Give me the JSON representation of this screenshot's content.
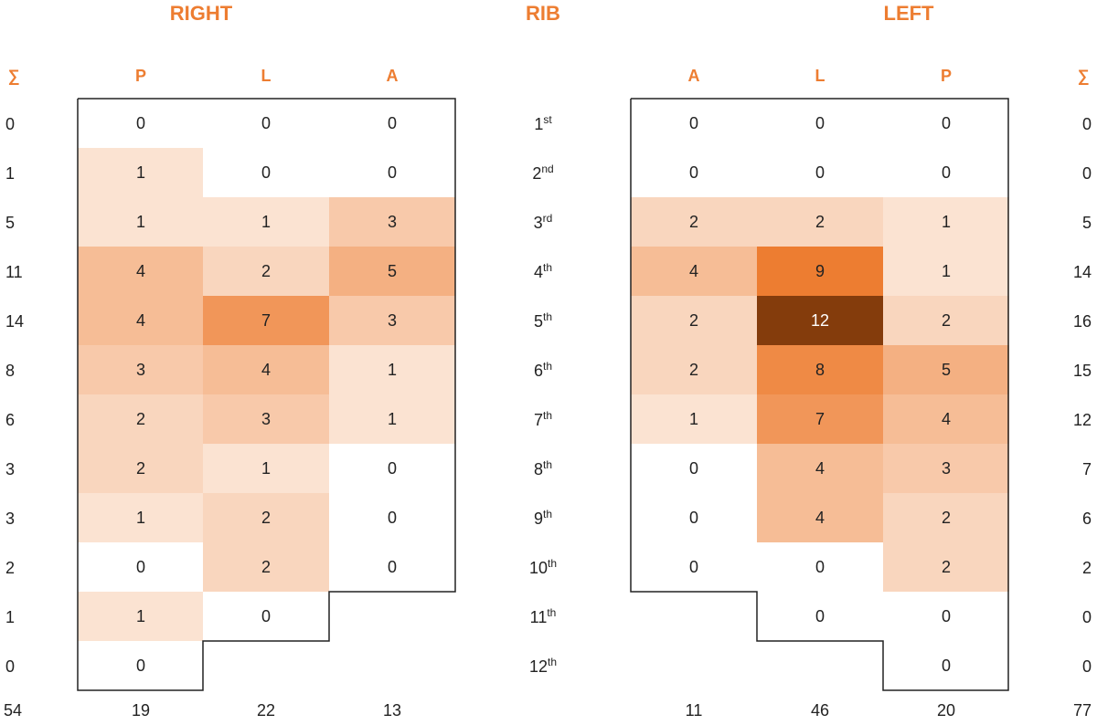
{
  "chart_data": {
    "type": "heatmap",
    "headers": {
      "right": "RIGHT",
      "rib": "RIB",
      "left": "LEFT",
      "sum_symbol": "∑"
    },
    "right_columns": [
      "P",
      "L",
      "A"
    ],
    "left_columns": [
      "A",
      "L",
      "P"
    ],
    "ribs": [
      {
        "num": "1",
        "suffix": "st"
      },
      {
        "num": "2",
        "suffix": "nd"
      },
      {
        "num": "3",
        "suffix": "rd"
      },
      {
        "num": "4",
        "suffix": "th"
      },
      {
        "num": "5",
        "suffix": "th"
      },
      {
        "num": "6",
        "suffix": "th"
      },
      {
        "num": "7",
        "suffix": "th"
      },
      {
        "num": "8",
        "suffix": "th"
      },
      {
        "num": "9",
        "suffix": "th"
      },
      {
        "num": "10",
        "suffix": "th"
      },
      {
        "num": "11",
        "suffix": "th"
      },
      {
        "num": "12",
        "suffix": "th"
      }
    ],
    "right_values": [
      [
        0,
        0,
        0
      ],
      [
        1,
        0,
        0
      ],
      [
        1,
        1,
        3
      ],
      [
        4,
        2,
        5
      ],
      [
        4,
        7,
        3
      ],
      [
        3,
        4,
        1
      ],
      [
        2,
        3,
        1
      ],
      [
        2,
        1,
        0
      ],
      [
        1,
        2,
        0
      ],
      [
        0,
        2,
        0
      ],
      [
        1,
        0,
        null
      ],
      [
        0,
        null,
        null
      ]
    ],
    "left_values": [
      [
        0,
        0,
        0
      ],
      [
        0,
        0,
        0
      ],
      [
        2,
        2,
        1
      ],
      [
        4,
        9,
        1
      ],
      [
        2,
        12,
        2
      ],
      [
        2,
        8,
        5
      ],
      [
        1,
        7,
        4
      ],
      [
        0,
        4,
        3
      ],
      [
        0,
        4,
        2
      ],
      [
        0,
        0,
        2
      ],
      [
        null,
        0,
        0
      ],
      [
        null,
        null,
        0
      ]
    ],
    "right_row_sums": [
      "0",
      "1",
      "5",
      "11",
      "14",
      "8",
      "6",
      "3",
      "3",
      "2",
      "1",
      "0"
    ],
    "left_row_sums": [
      "0",
      "0",
      "5",
      "14",
      "16",
      "15",
      "12",
      "7",
      "6",
      "2",
      "0",
      "0"
    ],
    "right_column_totals": [
      "19",
      "22",
      "13"
    ],
    "left_column_totals": [
      "11",
      "46",
      "20"
    ],
    "right_total": "54",
    "left_total": "77",
    "color_scale": {
      "min": 0,
      "max": 12,
      "low_color": "#ffffff",
      "mid_color": "#ED7D31",
      "high_color": "#843C0C"
    }
  }
}
